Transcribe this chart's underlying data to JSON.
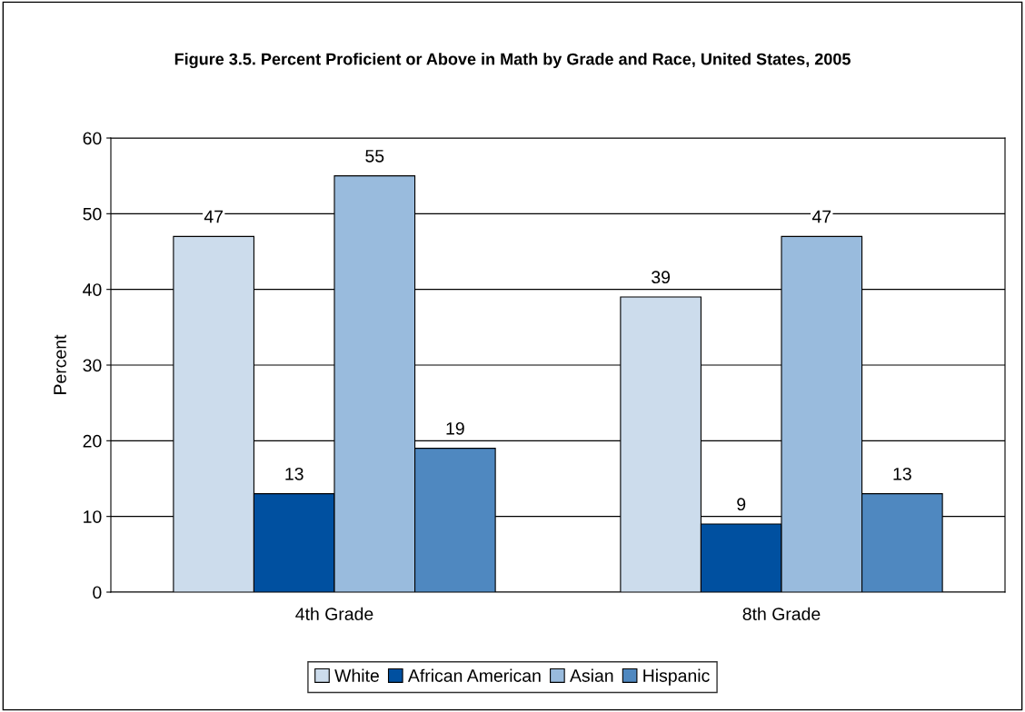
{
  "chart_data": {
    "type": "bar",
    "title": "Figure 3.5. Percent Proficient or Above in Math by Grade and Race, United States, 2005",
    "ylabel": "Percent",
    "categories": [
      "4th Grade",
      "8th Grade"
    ],
    "series": [
      {
        "name": "White",
        "color": "#ccdcec",
        "values": [
          47,
          39
        ]
      },
      {
        "name": "African American",
        "color": "#0050a0",
        "values": [
          13,
          9
        ]
      },
      {
        "name": "Asian",
        "color": "#99bbdd",
        "values": [
          55,
          47
        ]
      },
      {
        "name": "Hispanic",
        "color": "#4f88c0",
        "values": [
          19,
          13
        ]
      }
    ],
    "ylim": [
      0,
      60
    ],
    "yticks": [
      0,
      10,
      20,
      30,
      40,
      50,
      60
    ],
    "grid": "y",
    "legend": "bottom",
    "data_labels": true
  }
}
